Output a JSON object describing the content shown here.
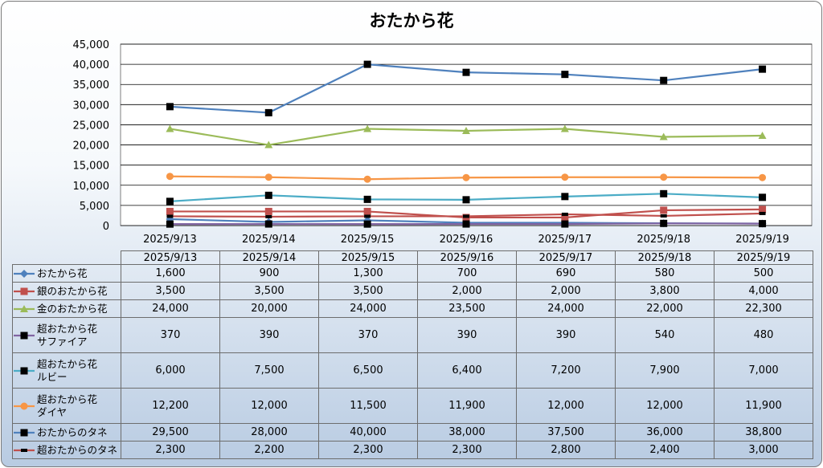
{
  "chart_data": {
    "type": "line",
    "title": "おたから花",
    "categories": [
      "2025/9/13",
      "2025/9/14",
      "2025/9/15",
      "2025/9/16",
      "2025/9/17",
      "2025/9/18",
      "2025/9/19"
    ],
    "ylim": [
      0,
      45000
    ],
    "yticks": [
      "0",
      "5,000",
      "10,000",
      "15,000",
      "20,000",
      "25,000",
      "30,000",
      "35,000",
      "40,000",
      "45,000"
    ],
    "grid": true,
    "legend": "data-table",
    "series": [
      {
        "name": "おたから花",
        "name_lines": [
          "おたから花"
        ],
        "values": [
          1600,
          900,
          1300,
          700,
          690,
          580,
          500
        ],
        "labels": [
          "1,600",
          "900",
          "1,300",
          "700",
          "690",
          "580",
          "500"
        ],
        "color": "#4f81bd",
        "marker": "diamond",
        "line": "#4f81bd"
      },
      {
        "name": "銀のおたから花",
        "name_lines": [
          "銀のおたから花"
        ],
        "values": [
          3500,
          3500,
          3500,
          2000,
          2000,
          3800,
          4000
        ],
        "labels": [
          "3,500",
          "3,500",
          "3,500",
          "2,000",
          "2,000",
          "3,800",
          "4,000"
        ],
        "color": "#c0504d",
        "marker": "square",
        "line": "#c0504d"
      },
      {
        "name": "金のおたから花",
        "name_lines": [
          "金のおたから花"
        ],
        "values": [
          24000,
          20000,
          24000,
          23500,
          24000,
          22000,
          22300
        ],
        "labels": [
          "24,000",
          "20,000",
          "24,000",
          "23,500",
          "24,000",
          "22,000",
          "22,300"
        ],
        "color": "#9bbb59",
        "marker": "triangle",
        "line": "#9bbb59"
      },
      {
        "name": "超おたから花サファイア",
        "name_lines": [
          "超おたから花",
          "サファイア"
        ],
        "values": [
          370,
          390,
          370,
          390,
          390,
          540,
          480
        ],
        "labels": [
          "370",
          "390",
          "370",
          "390",
          "390",
          "540",
          "480"
        ],
        "color": "#000000",
        "marker": "square",
        "line": "#8064a2"
      },
      {
        "name": "超おたから花ルビー",
        "name_lines": [
          "超おたから花",
          "ルビー"
        ],
        "values": [
          6000,
          7500,
          6500,
          6400,
          7200,
          7900,
          7000
        ],
        "labels": [
          "6,000",
          "7,500",
          "6,500",
          "6,400",
          "7,200",
          "7,900",
          "7,000"
        ],
        "color": "#000000",
        "marker": "square",
        "line": "#4bacc6"
      },
      {
        "name": "超おたから花ダイヤ",
        "name_lines": [
          "超おたから花",
          "ダイヤ"
        ],
        "values": [
          12200,
          12000,
          11500,
          11900,
          12000,
          12000,
          11900
        ],
        "labels": [
          "12,200",
          "12,000",
          "11,500",
          "11,900",
          "12,000",
          "12,000",
          "11,900"
        ],
        "color": "#f79646",
        "marker": "circle",
        "line": "#f79646"
      },
      {
        "name": "おたからのタネ",
        "name_lines": [
          "おたからのタネ"
        ],
        "values": [
          29500,
          28000,
          40000,
          38000,
          37500,
          36000,
          38800
        ],
        "labels": [
          "29,500",
          "28,000",
          "40,000",
          "38,000",
          "37,500",
          "36,000",
          "38,800"
        ],
        "color": "#000000",
        "marker": "square",
        "line": "#4f81bd"
      },
      {
        "name": "超おたからのタネ",
        "name_lines": [
          "超おたからのタネ"
        ],
        "values": [
          2300,
          2200,
          2300,
          2300,
          2800,
          2400,
          3000
        ],
        "labels": [
          "2,300",
          "2,200",
          "2,300",
          "2,300",
          "2,800",
          "2,400",
          "3,000"
        ],
        "color": "#000000",
        "marker": "dash",
        "line": "#c0504d"
      }
    ]
  }
}
